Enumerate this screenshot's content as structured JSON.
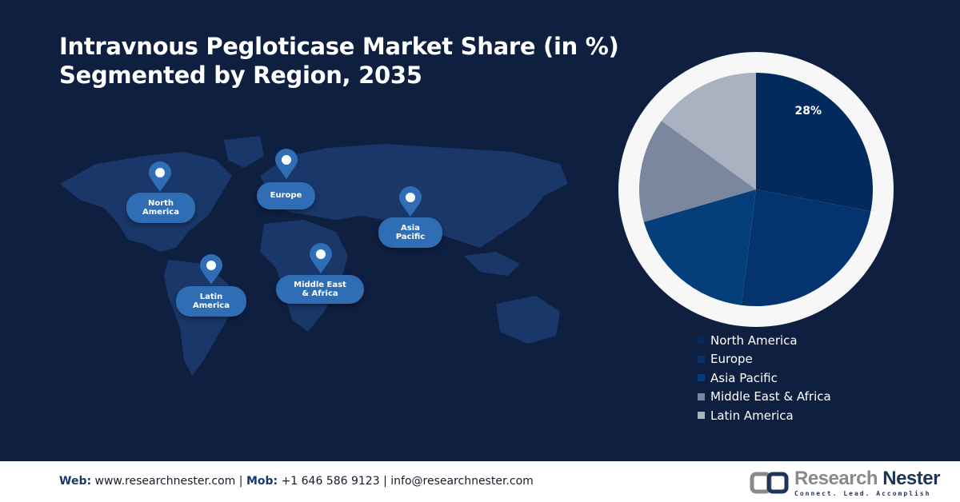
{
  "title_line1": "Intravnous Pegloticase Market Share (in %)",
  "title_line2": "Segmented by Region, 2035",
  "map_labels": [
    {
      "region": "North America",
      "text": "North\nAmerica"
    },
    {
      "region": "Europe",
      "text": "Europe"
    },
    {
      "region": "Asia Pacific",
      "text": "Asia\nPacific"
    },
    {
      "region": "Latin America",
      "text": "Latin\nAmerica"
    },
    {
      "region": "Middle East & Africa",
      "text": "Middle East\n& Africa"
    }
  ],
  "chart_data": {
    "type": "pie",
    "categories": [
      "North America",
      "Europe",
      "Asia Pacific",
      "Middle East & Africa",
      "Latin America"
    ],
    "values": [
      28,
      24,
      18.5,
      14.5,
      15
    ],
    "data_labels": [
      "28%",
      "",
      "",
      "",
      ""
    ],
    "colors": [
      "#022a5c",
      "#03346e",
      "#053f7b",
      "#7b879f",
      "#aab1c1"
    ],
    "legend_position": "bottom-right"
  },
  "footer": {
    "web_label": "Web:",
    "web": "www.researchnester.com",
    "mob_label": "Mob:",
    "mob": "+1 646 586 9123",
    "email": "info@researchnester.com",
    "logo_name_a": "Research",
    "logo_name_b": "Nester",
    "logo_tagline": "Connect. Lead. Accomplish"
  }
}
